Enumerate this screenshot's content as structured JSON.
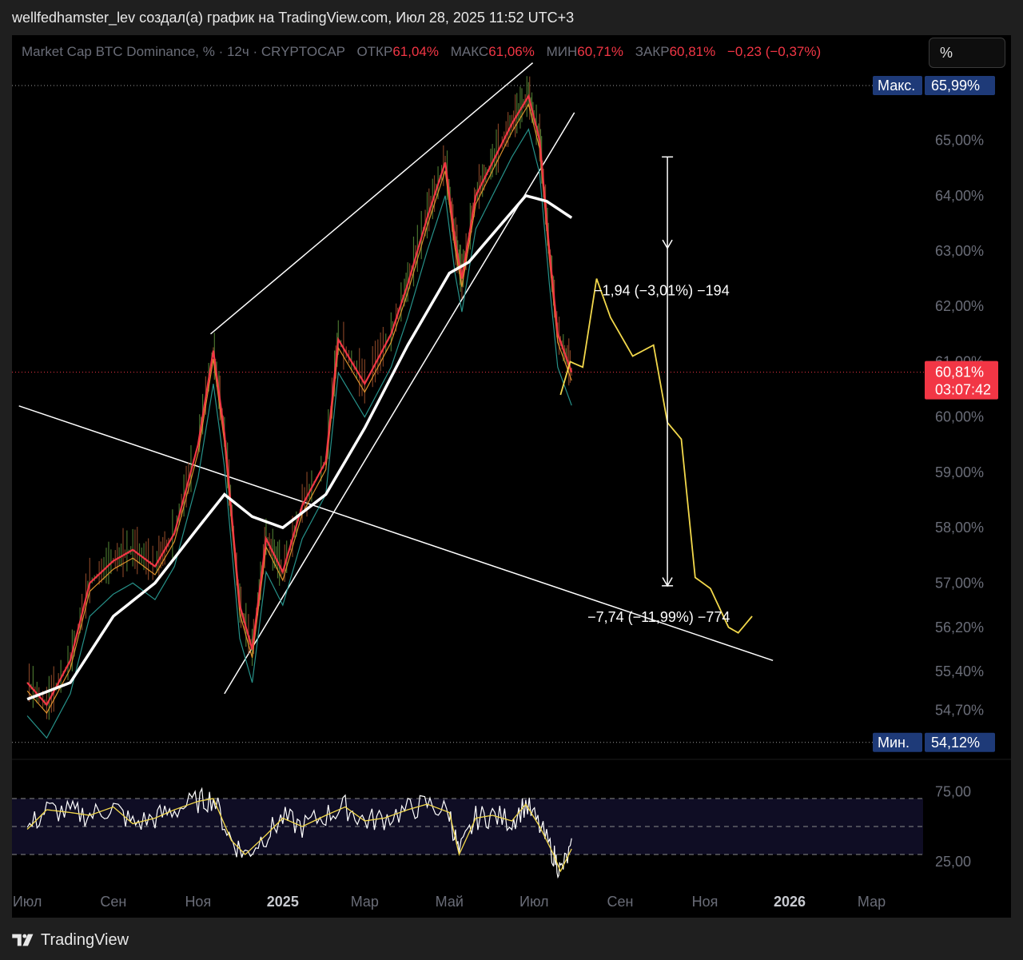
{
  "caption": "wellfedhamster_lev создал(а) график на TradingView.com, Июл 28, 2025 11:52 UTC+3",
  "legend": {
    "symbol": "Market Cap BTC Dominance, % · 12ч · CRYPTOCAP",
    "open_label": "ОТКР",
    "open": "61,04%",
    "high_label": "МАКС",
    "high": "61,06%",
    "low_label": "МИН",
    "low": "60,71%",
    "close_label": "ЗАКР",
    "close": "60,81%",
    "change": "−0,23 (−0,37%)"
  },
  "scale_button": "%",
  "max_tag": {
    "label": "Макс.",
    "value": "65,99%"
  },
  "min_tag": {
    "label": "Мин.",
    "value": "54,12%"
  },
  "price_tag": {
    "value": "60,81%",
    "countdown": "03:07:42"
  },
  "annotations": {
    "measure_top": "−1,94 (−3,01%) −194",
    "measure_bottom": "−7,74 (−11,99%) −774"
  },
  "footer_brand": "TradingView",
  "colors": {
    "up": "#26a69a",
    "down": "#f23645",
    "projection": "#f2d84b",
    "line": "#ffffff"
  },
  "chart_data": [
    {
      "type": "line",
      "title": "Market Cap BTC Dominance, %",
      "ylabel": "%",
      "x_ticks": [
        "Июл",
        "Сен",
        "Ноя",
        "2025",
        "Мар",
        "Май",
        "Июл",
        "Сен",
        "Ноя",
        "2026",
        "Мар"
      ],
      "y_ticks": [
        "65,00%",
        "64,00%",
        "63,00%",
        "62,00%",
        "61,00%",
        "60,00%",
        "59,00%",
        "58,00%",
        "57,00%",
        "56,20%",
        "55,40%",
        "54,70%"
      ],
      "ylim": [
        53.9,
        66.9
      ],
      "series": [
        {
          "name": "",
          "values": [
            [
              "2024-07-01",
              55.2
            ],
            [
              "2024-07-15",
              54.8
            ],
            [
              "2024-08-01",
              55.6
            ],
            [
              "2024-08-15",
              57.0
            ],
            [
              "2024-09-01",
              57.4
            ],
            [
              "2024-09-15",
              57.6
            ],
            [
              "2024-10-01",
              57.3
            ],
            [
              "2024-10-15",
              57.9
            ],
            [
              "2024-11-01",
              59.5
            ],
            [
              "2024-11-12",
              61.2
            ],
            [
              "2024-11-20",
              59.7
            ],
            [
              "2024-12-01",
              56.6
            ],
            [
              "2024-12-10",
              55.8
            ],
            [
              "2024-12-20",
              57.8
            ],
            [
              "2025-01-01",
              57.2
            ],
            [
              "2025-01-15",
              58.4
            ],
            [
              "2025-02-01",
              59.2
            ],
            [
              "2025-02-10",
              61.4
            ],
            [
              "2025-03-01",
              60.6
            ],
            [
              "2025-03-20",
              61.5
            ],
            [
              "2025-04-01",
              62.4
            ],
            [
              "2025-04-15",
              63.6
            ],
            [
              "2025-04-28",
              64.6
            ],
            [
              "2025-05-05",
              63.2
            ],
            [
              "2025-05-10",
              62.5
            ],
            [
              "2025-05-20",
              64.0
            ],
            [
              "2025-06-01",
              64.6
            ],
            [
              "2025-06-15",
              65.3
            ],
            [
              "2025-06-27",
              65.8
            ],
            [
              "2025-07-05",
              65.0
            ],
            [
              "2025-07-12",
              63.0
            ],
            [
              "2025-07-18",
              61.5
            ],
            [
              "2025-07-28",
              60.81
            ]
          ]
        },
        {
          "name": "",
          "values": [
            [
              "2024-07-01",
              54.9
            ],
            [
              "2024-08-01",
              55.2
            ],
            [
              "2024-09-01",
              56.4
            ],
            [
              "2024-10-01",
              57.0
            ],
            [
              "2024-11-01",
              58.0
            ],
            [
              "2024-11-20",
              58.6
            ],
            [
              "2024-12-10",
              58.2
            ],
            [
              "2025-01-01",
              58.0
            ],
            [
              "2025-02-01",
              58.6
            ],
            [
              "2025-03-01",
              59.8
            ],
            [
              "2025-04-01",
              61.3
            ],
            [
              "2025-05-01",
              62.6
            ],
            [
              "2025-05-15",
              62.8
            ],
            [
              "2025-06-01",
              63.3
            ],
            [
              "2025-06-25",
              64.0
            ],
            [
              "2025-07-10",
              63.9
            ],
            [
              "2025-07-28",
              63.6
            ]
          ]
        },
        {
          "name": "",
          "values": [
            [
              "2025-07-20",
              60.4
            ],
            [
              "2025-07-27",
              61.0
            ],
            [
              "2025-08-05",
              60.9
            ],
            [
              "2025-08-15",
              62.5
            ],
            [
              "2025-08-25",
              61.8
            ],
            [
              "2025-09-10",
              61.1
            ],
            [
              "2025-09-25",
              61.3
            ],
            [
              "2025-10-05",
              59.9
            ],
            [
              "2025-10-15",
              59.6
            ],
            [
              "2025-10-25",
              57.1
            ],
            [
              "2025-11-05",
              56.9
            ],
            [
              "2025-11-18",
              56.2
            ],
            [
              "2025-11-25",
              56.1
            ],
            [
              "2025-12-05",
              56.4
            ]
          ]
        }
      ],
      "lines": [
        {
          "from": [
            "2024-11-10",
            61.5
          ],
          "to": [
            "2025-06-30",
            66.4
          ]
        },
        {
          "from": [
            "2024-11-20",
            55.0
          ],
          "to": [
            "2025-07-30",
            65.5
          ]
        },
        {
          "from": [
            "2024-06-25",
            60.2
          ],
          "to": [
            "2025-12-20",
            55.6
          ]
        }
      ],
      "measure": {
        "date": "2025-10-05",
        "from": 64.7,
        "to": 56.95
      }
    },
    {
      "type": "line",
      "title": "",
      "y_ticks": [
        "75,00",
        "25,00"
      ],
      "ylim": [
        10,
        90
      ],
      "bands": [
        70,
        50,
        30
      ],
      "series": [
        {
          "name": "",
          "values": [
            [
              "2024-07-01",
              48
            ],
            [
              "2024-07-15",
              62
            ],
            [
              "2024-08-01",
              60
            ],
            [
              "2024-08-15",
              58
            ],
            [
              "2024-09-01",
              64
            ],
            [
              "2024-09-15",
              52
            ],
            [
              "2024-10-01",
              56
            ],
            [
              "2024-10-15",
              62
            ],
            [
              "2024-11-01",
              68
            ],
            [
              "2024-11-12",
              70
            ],
            [
              "2024-11-25",
              40
            ],
            [
              "2024-12-05",
              30
            ],
            [
              "2024-12-20",
              44
            ],
            [
              "2025-01-01",
              56
            ],
            [
              "2025-01-15",
              50
            ],
            [
              "2025-02-01",
              58
            ],
            [
              "2025-02-15",
              64
            ],
            [
              "2025-03-01",
              54
            ],
            [
              "2025-03-15",
              56
            ],
            [
              "2025-04-01",
              62
            ],
            [
              "2025-04-15",
              66
            ],
            [
              "2025-05-01",
              60
            ],
            [
              "2025-05-08",
              30
            ],
            [
              "2025-05-20",
              56
            ],
            [
              "2025-06-01",
              58
            ],
            [
              "2025-06-15",
              54
            ],
            [
              "2025-06-25",
              66
            ],
            [
              "2025-07-05",
              50
            ],
            [
              "2025-07-15",
              30
            ],
            [
              "2025-07-20",
              18
            ],
            [
              "2025-07-28",
              34
            ]
          ]
        }
      ]
    }
  ]
}
